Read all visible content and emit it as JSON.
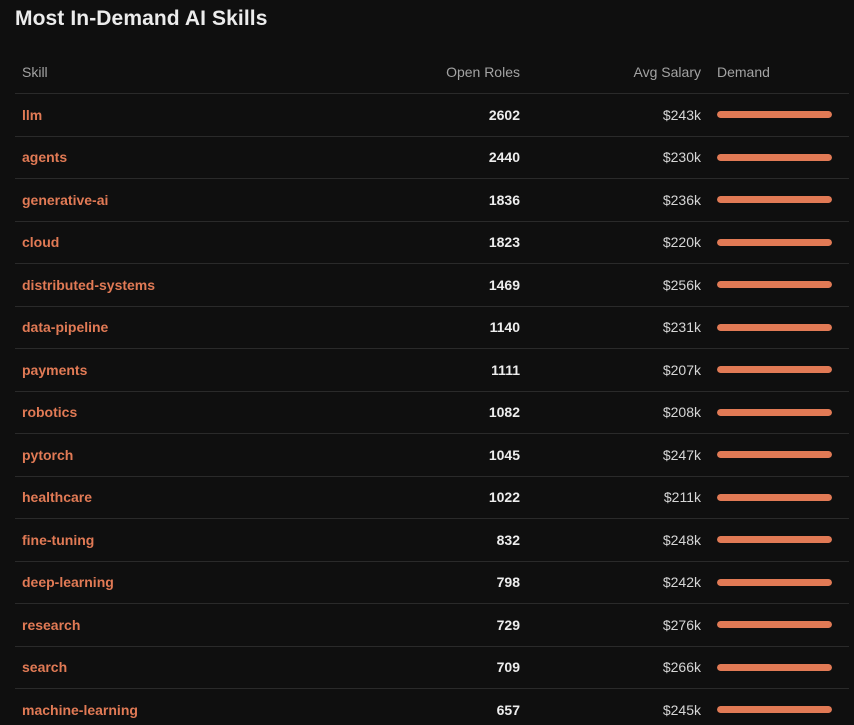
{
  "title": "Most In-Demand AI Skills",
  "colors": {
    "background": "#0f0f0f",
    "accent": "#e17a55",
    "divider": "#2a2a2a"
  },
  "table": {
    "headers": {
      "skill": "Skill",
      "roles": "Open Roles",
      "salary": "Avg Salary",
      "demand": "Demand"
    },
    "rows": [
      {
        "skill": "llm",
        "roles": "2602",
        "salary": "$243k",
        "demand": 1.0
      },
      {
        "skill": "agents",
        "roles": "2440",
        "salary": "$230k",
        "demand": 1.0
      },
      {
        "skill": "generative-ai",
        "roles": "1836",
        "salary": "$236k",
        "demand": 1.0
      },
      {
        "skill": "cloud",
        "roles": "1823",
        "salary": "$220k",
        "demand": 1.0
      },
      {
        "skill": "distributed-systems",
        "roles": "1469",
        "salary": "$256k",
        "demand": 1.0
      },
      {
        "skill": "data-pipeline",
        "roles": "1140",
        "salary": "$231k",
        "demand": 1.0
      },
      {
        "skill": "payments",
        "roles": "1111",
        "salary": "$207k",
        "demand": 1.0
      },
      {
        "skill": "robotics",
        "roles": "1082",
        "salary": "$208k",
        "demand": 1.0
      },
      {
        "skill": "pytorch",
        "roles": "1045",
        "salary": "$247k",
        "demand": 1.0
      },
      {
        "skill": "healthcare",
        "roles": "1022",
        "salary": "$211k",
        "demand": 1.0
      },
      {
        "skill": "fine-tuning",
        "roles": "832",
        "salary": "$248k",
        "demand": 1.0
      },
      {
        "skill": "deep-learning",
        "roles": "798",
        "salary": "$242k",
        "demand": 1.0
      },
      {
        "skill": "research",
        "roles": "729",
        "salary": "$276k",
        "demand": 1.0
      },
      {
        "skill": "search",
        "roles": "709",
        "salary": "$266k",
        "demand": 1.0
      },
      {
        "skill": "machine-learning",
        "roles": "657",
        "salary": "$245k",
        "demand": 1.0
      }
    ]
  }
}
